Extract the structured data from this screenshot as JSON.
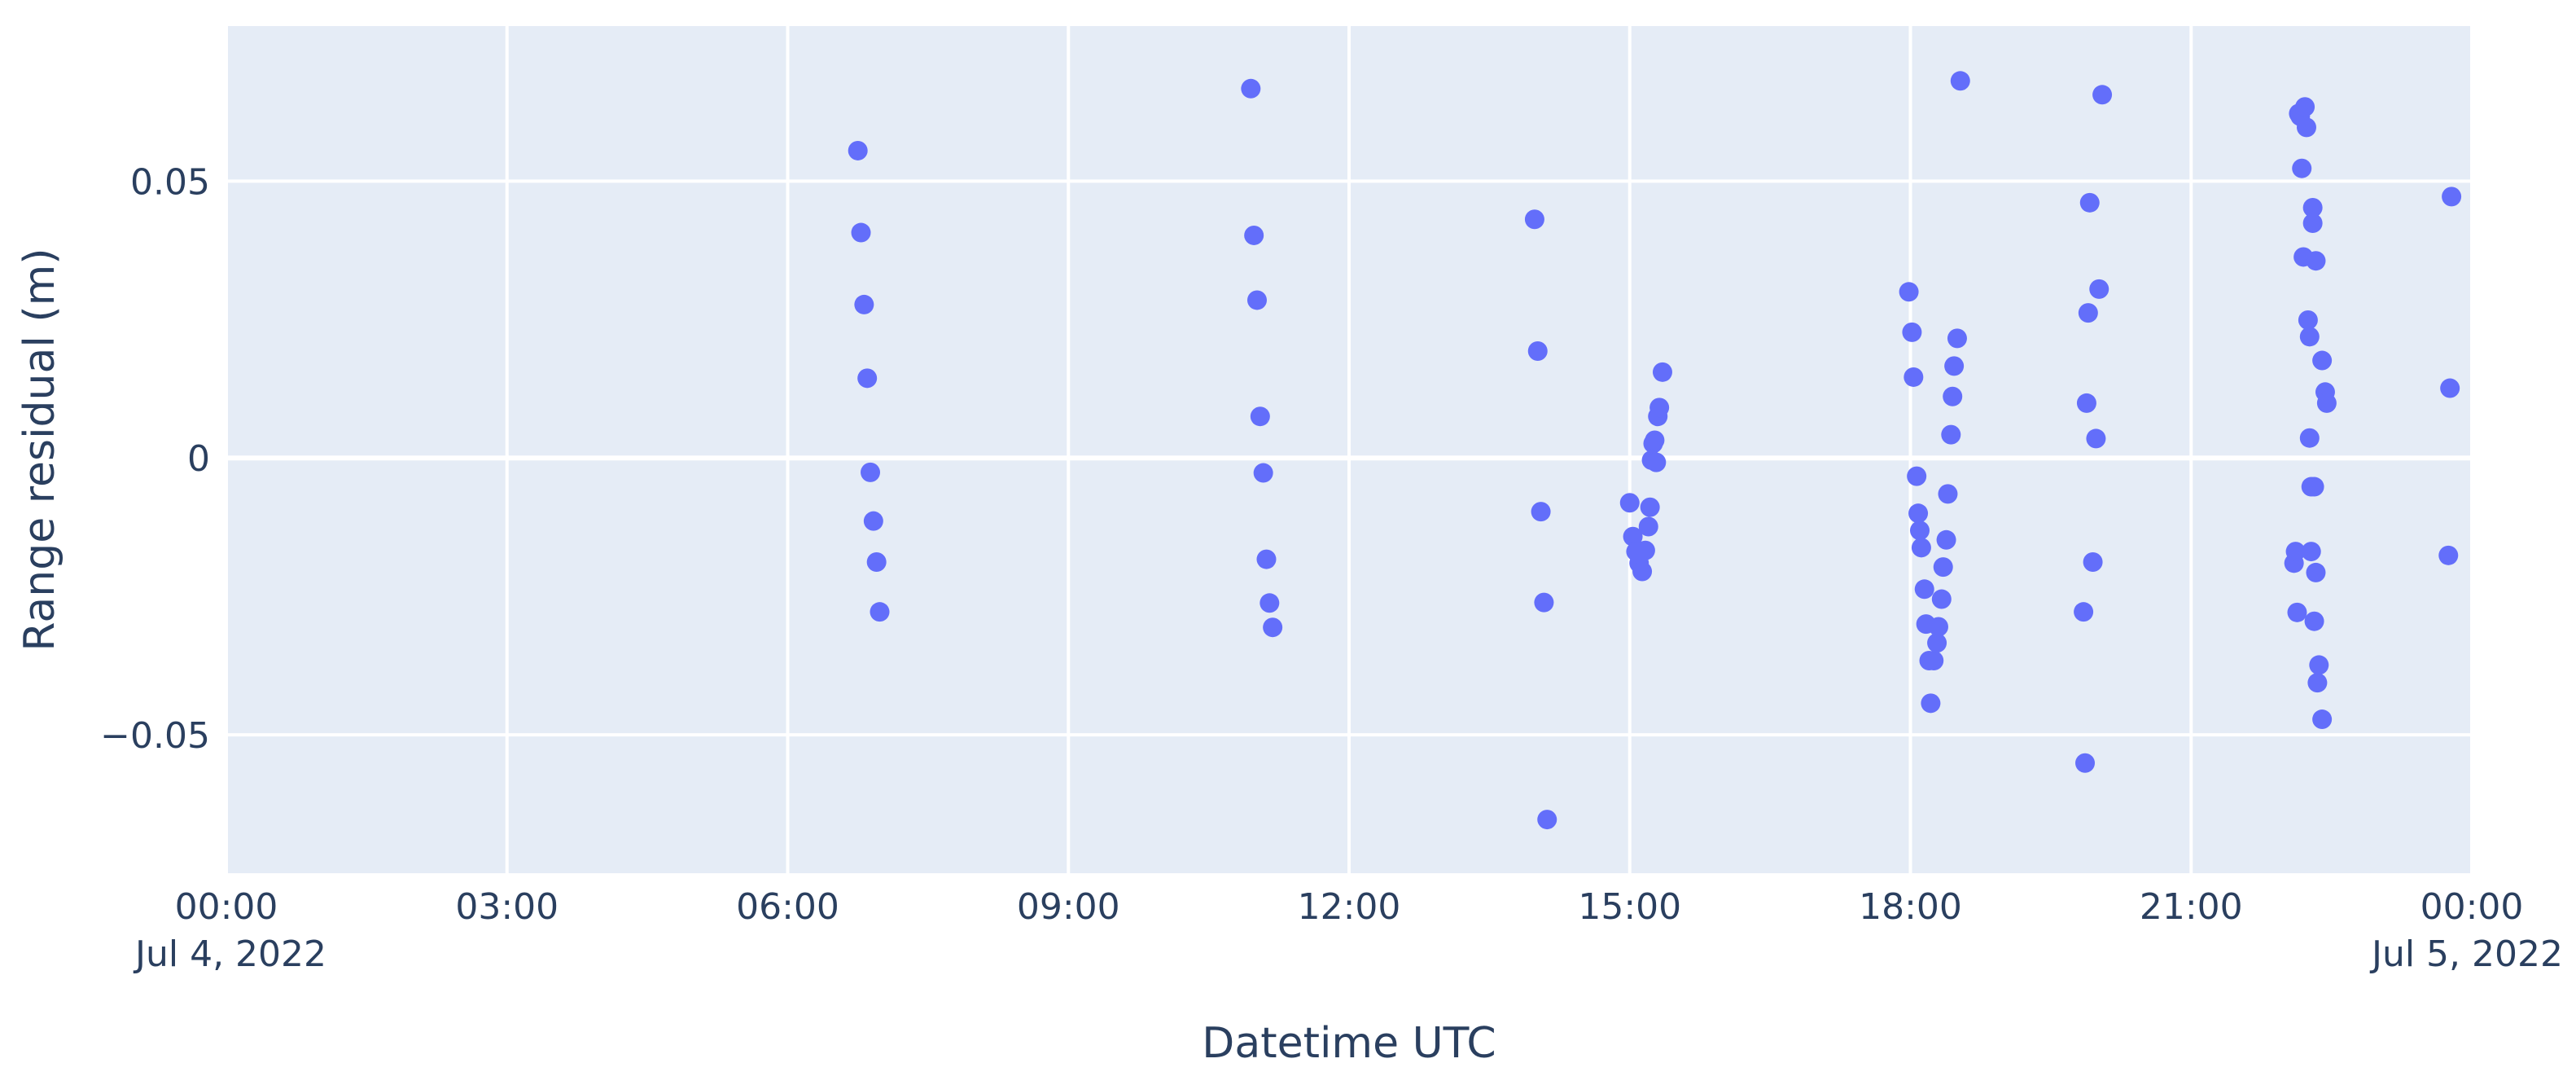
{
  "chart_data": {
    "type": "scatter",
    "title": "",
    "xlabel": "Datetime UTC",
    "ylabel": "Range residual (m)",
    "x_type": "datetime",
    "xlim": [
      "2022-07-04 00:00",
      "2022-07-05 00:00"
    ],
    "ylim": [
      -0.075,
      0.078
    ],
    "grid": true,
    "colors": {
      "marker": "#636efa",
      "plot_bg": "#e5ecf6",
      "grid": "#ffffff",
      "text": "#2a3f5f"
    },
    "x_ticks": [
      {
        "value": "2022-07-04 00:00",
        "label": "00:00",
        "sublabel": "Jul 4, 2022"
      },
      {
        "value": "2022-07-04 03:00",
        "label": "03:00",
        "sublabel": ""
      },
      {
        "value": "2022-07-04 06:00",
        "label": "06:00",
        "sublabel": ""
      },
      {
        "value": "2022-07-04 09:00",
        "label": "09:00",
        "sublabel": ""
      },
      {
        "value": "2022-07-04 12:00",
        "label": "12:00",
        "sublabel": ""
      },
      {
        "value": "2022-07-04 15:00",
        "label": "15:00",
        "sublabel": ""
      },
      {
        "value": "2022-07-04 18:00",
        "label": "18:00",
        "sublabel": ""
      },
      {
        "value": "2022-07-04 21:00",
        "label": "21:00",
        "sublabel": ""
      },
      {
        "value": "2022-07-05 00:00",
        "label": "00:00",
        "sublabel": "Jul 5, 2022"
      }
    ],
    "y_ticks": [
      {
        "value": 0.05,
        "label": "0.05"
      },
      {
        "value": 0,
        "label": "0"
      },
      {
        "value": -0.05,
        "label": "−0.05"
      }
    ],
    "series": [
      {
        "points": [
          {
            "x": "2022-07-04 06:45",
            "y": 0.0555
          },
          {
            "x": "2022-07-04 06:47",
            "y": 0.0407
          },
          {
            "x": "2022-07-04 06:49",
            "y": 0.0277
          },
          {
            "x": "2022-07-04 06:51",
            "y": 0.0144
          },
          {
            "x": "2022-07-04 06:53",
            "y": -0.0026
          },
          {
            "x": "2022-07-04 06:55",
            "y": -0.0114
          },
          {
            "x": "2022-07-04 06:57",
            "y": -0.0188
          },
          {
            "x": "2022-07-04 06:59",
            "y": -0.0278
          },
          {
            "x": "2022-07-04 10:57",
            "y": 0.0667
          },
          {
            "x": "2022-07-04 10:59",
            "y": 0.0402
          },
          {
            "x": "2022-07-04 11:01",
            "y": 0.0285
          },
          {
            "x": "2022-07-04 11:03",
            "y": 0.0075
          },
          {
            "x": "2022-07-04 11:05",
            "y": -0.0027
          },
          {
            "x": "2022-07-04 11:07",
            "y": -0.0183
          },
          {
            "x": "2022-07-04 11:09",
            "y": -0.0262
          },
          {
            "x": "2022-07-04 11:11",
            "y": -0.0306
          },
          {
            "x": "2022-07-04 13:59",
            "y": 0.0431
          },
          {
            "x": "2022-07-04 14:01",
            "y": 0.0193
          },
          {
            "x": "2022-07-04 14:03",
            "y": -0.0097
          },
          {
            "x": "2022-07-04 14:05",
            "y": -0.0261
          },
          {
            "x": "2022-07-04 14:07",
            "y": -0.0653
          },
          {
            "x": "2022-07-04 15:00",
            "y": -0.0081
          },
          {
            "x": "2022-07-04 15:02",
            "y": -0.0142
          },
          {
            "x": "2022-07-04 15:04",
            "y": -0.0169
          },
          {
            "x": "2022-07-04 15:06",
            "y": -0.019
          },
          {
            "x": "2022-07-04 15:08",
            "y": -0.0205
          },
          {
            "x": "2022-07-04 15:10",
            "y": -0.0167
          },
          {
            "x": "2022-07-04 15:12",
            "y": -0.0124
          },
          {
            "x": "2022-07-04 15:13",
            "y": -0.0089
          },
          {
            "x": "2022-07-04 15:14",
            "y": -0.0004
          },
          {
            "x": "2022-07-04 15:15",
            "y": 0.0026
          },
          {
            "x": "2022-07-04 15:16",
            "y": 0.0032
          },
          {
            "x": "2022-07-04 15:17",
            "y": -0.0008
          },
          {
            "x": "2022-07-04 15:18",
            "y": 0.0075
          },
          {
            "x": "2022-07-04 15:19",
            "y": 0.0091
          },
          {
            "x": "2022-07-04 15:21",
            "y": 0.0155
          },
          {
            "x": "2022-07-04 17:59",
            "y": 0.03
          },
          {
            "x": "2022-07-04 18:01",
            "y": 0.0227
          },
          {
            "x": "2022-07-04 18:02",
            "y": 0.0146
          },
          {
            "x": "2022-07-04 18:04",
            "y": -0.0033
          },
          {
            "x": "2022-07-04 18:05",
            "y": -0.01
          },
          {
            "x": "2022-07-04 18:06",
            "y": -0.0131
          },
          {
            "x": "2022-07-04 18:07",
            "y": -0.0162
          },
          {
            "x": "2022-07-04 18:09",
            "y": -0.0237
          },
          {
            "x": "2022-07-04 18:10",
            "y": -0.03
          },
          {
            "x": "2022-07-04 18:12",
            "y": -0.0366
          },
          {
            "x": "2022-07-04 18:13",
            "y": -0.0443
          },
          {
            "x": "2022-07-04 18:15",
            "y": -0.0366
          },
          {
            "x": "2022-07-04 18:17",
            "y": -0.0334
          },
          {
            "x": "2022-07-04 18:18",
            "y": -0.0305
          },
          {
            "x": "2022-07-04 18:20",
            "y": -0.0255
          },
          {
            "x": "2022-07-04 18:21",
            "y": -0.0197
          },
          {
            "x": "2022-07-04 18:23",
            "y": -0.0148
          },
          {
            "x": "2022-07-04 18:24",
            "y": -0.0065
          },
          {
            "x": "2022-07-04 18:26",
            "y": 0.0042
          },
          {
            "x": "2022-07-04 18:27",
            "y": 0.0111
          },
          {
            "x": "2022-07-04 18:28",
            "y": 0.0166
          },
          {
            "x": "2022-07-04 18:30",
            "y": 0.0216
          },
          {
            "x": "2022-07-04 18:32",
            "y": 0.0681
          },
          {
            "x": "2022-07-04 19:51",
            "y": -0.0278
          },
          {
            "x": "2022-07-04 19:52",
            "y": -0.0551
          },
          {
            "x": "2022-07-04 19:53",
            "y": 0.0099
          },
          {
            "x": "2022-07-04 19:54",
            "y": 0.0262
          },
          {
            "x": "2022-07-04 19:55",
            "y": 0.0461
          },
          {
            "x": "2022-07-04 19:57",
            "y": -0.0188
          },
          {
            "x": "2022-07-04 19:59",
            "y": 0.0035
          },
          {
            "x": "2022-07-04 20:01",
            "y": 0.0305
          },
          {
            "x": "2022-07-04 20:03",
            "y": 0.0656
          },
          {
            "x": "2022-07-04 22:06",
            "y": -0.019
          },
          {
            "x": "2022-07-04 22:07",
            "y": -0.0169
          },
          {
            "x": "2022-07-04 22:08",
            "y": -0.0279
          },
          {
            "x": "2022-07-04 22:09",
            "y": 0.0622
          },
          {
            "x": "2022-07-04 22:10",
            "y": 0.0617
          },
          {
            "x": "2022-07-04 22:11",
            "y": 0.0523
          },
          {
            "x": "2022-07-04 22:12",
            "y": 0.0363
          },
          {
            "x": "2022-07-04 22:13",
            "y": 0.0634
          },
          {
            "x": "2022-07-04 22:14",
            "y": 0.0597
          },
          {
            "x": "2022-07-04 22:15",
            "y": 0.0249
          },
          {
            "x": "2022-07-04 22:16",
            "y": 0.0036
          },
          {
            "x": "2022-07-04 22:16",
            "y": 0.0219
          },
          {
            "x": "2022-07-04 22:17",
            "y": -0.0052
          },
          {
            "x": "2022-07-04 22:17",
            "y": -0.0169
          },
          {
            "x": "2022-07-04 22:18",
            "y": 0.0452
          },
          {
            "x": "2022-07-04 22:18",
            "y": 0.0424
          },
          {
            "x": "2022-07-04 22:19",
            "y": -0.0052
          },
          {
            "x": "2022-07-04 22:19",
            "y": -0.0295
          },
          {
            "x": "2022-07-04 22:20",
            "y": 0.0356
          },
          {
            "x": "2022-07-04 22:20",
            "y": -0.0207
          },
          {
            "x": "2022-07-04 22:21",
            "y": -0.0406
          },
          {
            "x": "2022-07-04 22:22",
            "y": -0.0374
          },
          {
            "x": "2022-07-04 22:24",
            "y": 0.0176
          },
          {
            "x": "2022-07-04 22:24",
            "y": -0.0472
          },
          {
            "x": "2022-07-04 22:26",
            "y": 0.0119
          },
          {
            "x": "2022-07-04 22:27",
            "y": 0.0099
          },
          {
            "x": "2022-07-04 23:45",
            "y": -0.0176
          },
          {
            "x": "2022-07-04 23:46",
            "y": 0.0126
          },
          {
            "x": "2022-07-04 23:47",
            "y": 0.0472
          }
        ]
      }
    ]
  }
}
